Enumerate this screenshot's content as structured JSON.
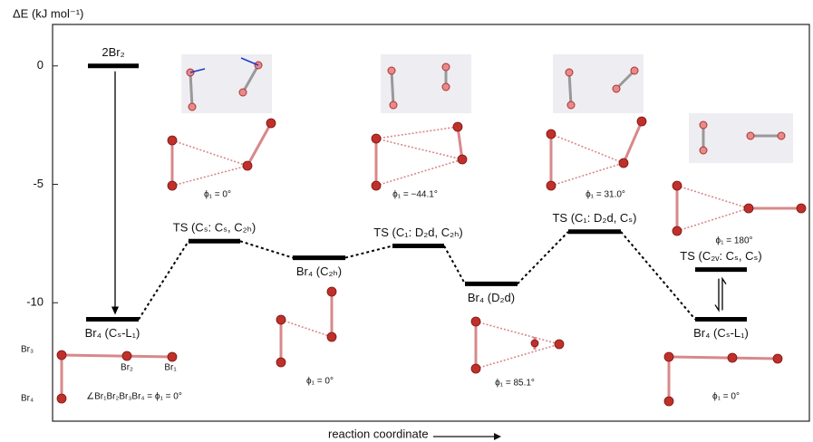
{
  "chart_data": {
    "type": "energy-diagram",
    "y_label": "ΔE (kJ mol⁻¹)",
    "x_label": "reaction coordinate",
    "ylim": [
      -15,
      1.75
    ],
    "yticks": [
      0,
      -5,
      -10
    ],
    "levels": [
      {
        "label": "2Br₂",
        "value": 0
      },
      {
        "label": "Br₄ (Cₛ-L₁)",
        "value": -10.7
      },
      {
        "label": "TS (Cₛ: Cₛ, C₂ₕ)",
        "value": -7.4
      },
      {
        "label": "Br₄ (C₂ₕ)",
        "value": -8.1
      },
      {
        "label": "TS (C₁: D₂d, C₂ₕ)",
        "value": -7.6
      },
      {
        "label": "Br₄ (D₂d)",
        "value": -9.2
      },
      {
        "label": "TS (C₁: D₂d, Cₛ)",
        "value": -7.0
      },
      {
        "label": "TS (C₂ᵥ: Cₛ, Cₛ)",
        "value": -8.6
      },
      {
        "label": "Br₄ (Cₛ-L₁)",
        "value": -10.7
      }
    ],
    "annotations": [
      "ϕ₁ = 0°",
      "ϕ₁ = −44.1°",
      "ϕ₁ = 31.0°",
      "ϕ₁ = 180°",
      "ϕ₁ = 0°",
      "ϕ₁ = 85.1°",
      "ϕ₁ = 0°",
      "∠Br₁Br₂Br₃Br₄ = ϕ₁ = 0°"
    ],
    "atom_labels": [
      "Br₃",
      "Br₂",
      "Br₁",
      "Br₄"
    ]
  }
}
